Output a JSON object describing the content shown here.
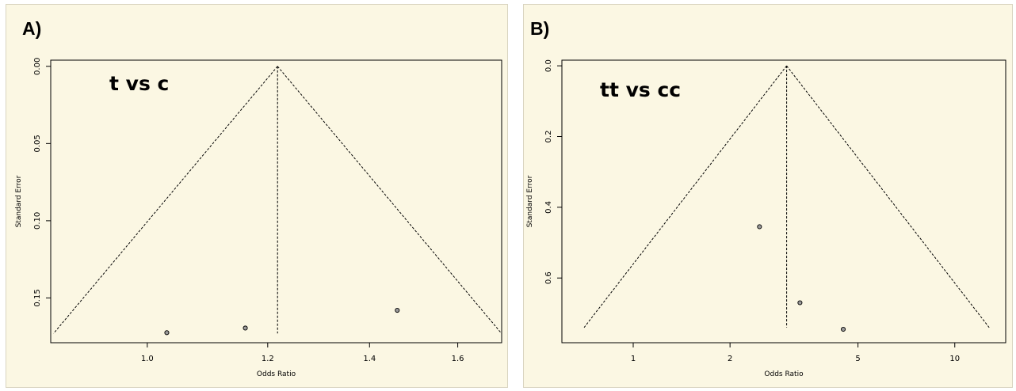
{
  "panels": [
    {
      "label": "A)"
    },
    {
      "label": "B)"
    }
  ],
  "chart_data": [
    {
      "type": "scatter",
      "title": "t vs c",
      "xlabel": "Odds Ratio",
      "ylabel": "Standard Error",
      "x_scale": "log",
      "y_reversed": true,
      "x_ticks": [
        1.0,
        1.2,
        1.4,
        1.6
      ],
      "x_tick_labels": [
        "1.0",
        "1.2",
        "1.4",
        "1.6"
      ],
      "y_ticks": [
        0.0,
        0.05,
        0.1,
        0.15
      ],
      "y_tick_labels": [
        "0.00",
        "0.05",
        "0.10",
        "0.15"
      ],
      "xlim": [
        0.864,
        1.71
      ],
      "ylim": [
        0.179,
        -0.004
      ],
      "pooled_or": 1.218,
      "funnel_max_se": 0.173,
      "points": [
        {
          "x": 1.03,
          "y": 0.1725
        },
        {
          "x": 1.16,
          "y": 0.1695
        },
        {
          "x": 1.46,
          "y": 0.158
        }
      ]
    },
    {
      "type": "scatter",
      "title": "tt vs cc",
      "xlabel": "Odds Ratio",
      "ylabel": "Standard Error",
      "x_scale": "log",
      "y_reversed": true,
      "x_ticks": [
        1,
        2,
        5,
        10
      ],
      "x_tick_labels": [
        "1",
        "2",
        "5",
        "10"
      ],
      "y_ticks": [
        0.0,
        0.2,
        0.4,
        0.6
      ],
      "y_tick_labels": [
        "0.0",
        "0.2",
        "0.4",
        "0.6"
      ],
      "xlim": [
        0.6,
        14.4
      ],
      "ylim": [
        0.783,
        -0.016
      ],
      "pooled_or": 3.0,
      "funnel_max_se": 0.74,
      "points": [
        {
          "x": 2.47,
          "y": 0.455
        },
        {
          "x": 3.3,
          "y": 0.67
        },
        {
          "x": 4.5,
          "y": 0.745
        }
      ]
    }
  ]
}
